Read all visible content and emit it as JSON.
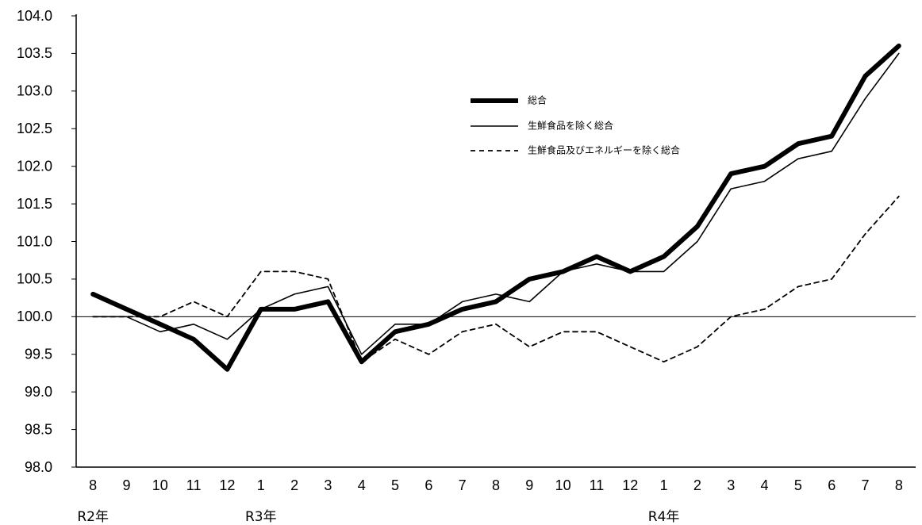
{
  "chart_data": {
    "type": "line",
    "title": "",
    "xlabel": "",
    "ylabel": "",
    "ylim": [
      98.0,
      104.0
    ],
    "yticks": [
      "104.0",
      "103.5",
      "103.0",
      "102.5",
      "102.0",
      "101.5",
      "101.0",
      "100.5",
      "100.0",
      "99.5",
      "99.0",
      "98.5",
      "98.0"
    ],
    "categories": [
      "8",
      "9",
      "10",
      "11",
      "12",
      "1",
      "2",
      "3",
      "4",
      "5",
      "6",
      "7",
      "8",
      "9",
      "10",
      "11",
      "12",
      "1",
      "2",
      "3",
      "4",
      "5",
      "6",
      "7",
      "8"
    ],
    "year_labels": [
      {
        "text": "R2年",
        "at_index": 0
      },
      {
        "text": "R3年",
        "at_index": 5
      },
      {
        "text": "R4年",
        "at_index": 17
      }
    ],
    "reference_line": 100.0,
    "legend_position": "top-right",
    "series": [
      {
        "name": "総合",
        "style": "thick",
        "values": [
          100.3,
          100.1,
          99.9,
          99.7,
          99.3,
          100.1,
          100.1,
          100.2,
          99.4,
          99.8,
          99.9,
          100.1,
          100.2,
          100.5,
          100.6,
          100.8,
          100.6,
          100.8,
          101.2,
          101.9,
          102.0,
          102.3,
          102.4,
          103.2,
          103.6
        ]
      },
      {
        "name": "生鮮食品を除く総合",
        "style": "thin",
        "values": [
          100.0,
          100.0,
          99.8,
          99.9,
          99.7,
          100.1,
          100.3,
          100.4,
          99.5,
          99.9,
          99.9,
          100.2,
          100.3,
          100.2,
          100.6,
          100.7,
          100.6,
          100.6,
          101.0,
          101.7,
          101.8,
          102.1,
          102.2,
          102.9,
          103.5
        ]
      },
      {
        "name": "生鮮食品及びエネルギーを除く総合",
        "style": "dashed",
        "values": [
          100.0,
          100.0,
          100.0,
          100.2,
          100.0,
          100.6,
          100.6,
          100.5,
          99.4,
          99.7,
          99.5,
          99.8,
          99.9,
          99.6,
          99.8,
          99.8,
          99.6,
          99.4,
          99.6,
          100.0,
          100.1,
          100.4,
          100.5,
          101.1,
          101.6
        ]
      }
    ],
    "colors": {
      "line": "#000000",
      "background": "#ffffff"
    }
  }
}
